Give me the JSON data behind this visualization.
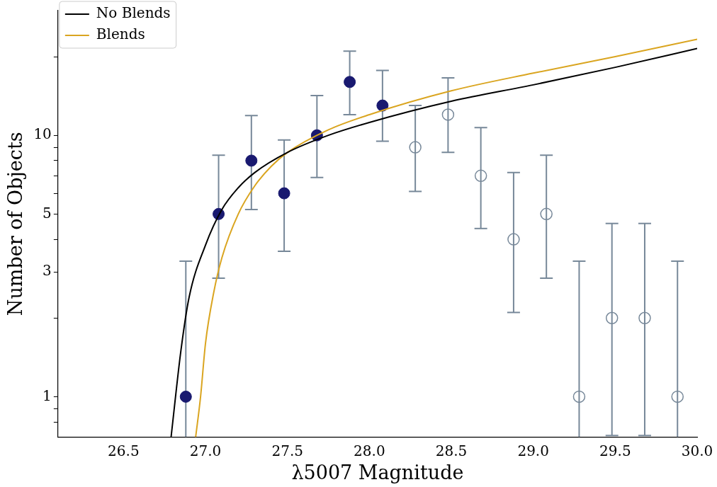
{
  "chart_data": {
    "type": "scatter",
    "xlabel": "λ5007 Magnitude",
    "ylabel": "Number of Objects",
    "log": "y",
    "legend": "top left",
    "grid": false,
    "xlim": [
      26.1,
      30.0
    ],
    "xticks": [
      26.5,
      {
        "value": 27,
        "label": "27.0"
      },
      27.5,
      {
        "value": 28,
        "label": "28.0"
      },
      28.5,
      {
        "value": 29,
        "label": "29.0"
      },
      29.5,
      {
        "value": 30,
        "label": "30.0"
      }
    ],
    "ylim": [
      0.7,
      30
    ],
    "yticks": [
      {
        "value": 0.8,
        "label": null
      },
      {
        "value": 0.9,
        "label": null
      },
      1,
      {
        "value": 2,
        "label": null
      },
      3,
      {
        "value": 4,
        "label": null
      },
      5,
      {
        "value": 6,
        "label": null
      },
      {
        "value": 7,
        "label": null
      },
      {
        "value": 8,
        "label": null
      },
      {
        "value": 9,
        "label": null
      },
      10,
      {
        "value": 20,
        "label": null
      }
    ],
    "series": [
      {
        "type": "line",
        "name": "No Blends",
        "color": "#000000",
        "x": [
          26.79,
          26.85,
          26.9,
          27.0,
          27.1,
          27.2,
          27.3,
          27.5,
          27.75,
          28.0,
          28.5,
          29.0,
          29.5,
          30.0
        ],
        "values": [
          0.7,
          1.5,
          2.4,
          3.8,
          5.2,
          6.3,
          7.2,
          8.6,
          10.0,
          11.2,
          13.5,
          15.6,
          18.2,
          21.5
        ]
      },
      {
        "type": "line",
        "name": "Blends",
        "color": "#daa520",
        "x": [
          26.94,
          26.97,
          27.0,
          27.05,
          27.1,
          27.2,
          27.3,
          27.4,
          27.5,
          27.75,
          28.0,
          28.5,
          29.0,
          29.5,
          30.0
        ],
        "values": [
          0.7,
          1.0,
          1.6,
          2.5,
          3.4,
          5.0,
          6.4,
          7.6,
          8.6,
          10.5,
          12.0,
          14.8,
          17.3,
          20.0,
          23.3
        ]
      },
      {
        "type": "scatter",
        "color": "#191970",
        "marker": "circle",
        "x": [
          26.88,
          27.08,
          27.28,
          27.48,
          27.68,
          27.88,
          28.08
        ],
        "values": [
          1,
          5,
          8,
          6,
          10,
          16,
          13
        ],
        "errors": [
          [
            0.7,
            3.3
          ],
          [
            2.84,
            8.4
          ],
          [
            5.2,
            11.9
          ],
          [
            3.6,
            9.6
          ],
          [
            6.9,
            14.2
          ],
          [
            12.0,
            21
          ],
          [
            9.5,
            17.7
          ]
        ]
      },
      {
        "type": "scatter",
        "color": "#778899",
        "marker": "circle",
        "x": [
          28.28,
          28.48,
          28.68,
          28.88,
          29.08,
          29.28,
          29.48,
          29.68,
          29.88
        ],
        "values": [
          9,
          12,
          7,
          4,
          5,
          1,
          2,
          2,
          1
        ],
        "errors": [
          [
            6.1,
            13.0
          ],
          [
            8.6,
            16.6
          ],
          [
            4.4,
            10.7
          ],
          [
            2.1,
            7.2
          ],
          [
            2.84,
            8.4
          ],
          [
            0.7,
            3.3
          ],
          [
            0.71,
            4.6
          ],
          [
            0.71,
            4.6
          ],
          [
            0.7,
            3.3
          ]
        ]
      }
    ]
  }
}
